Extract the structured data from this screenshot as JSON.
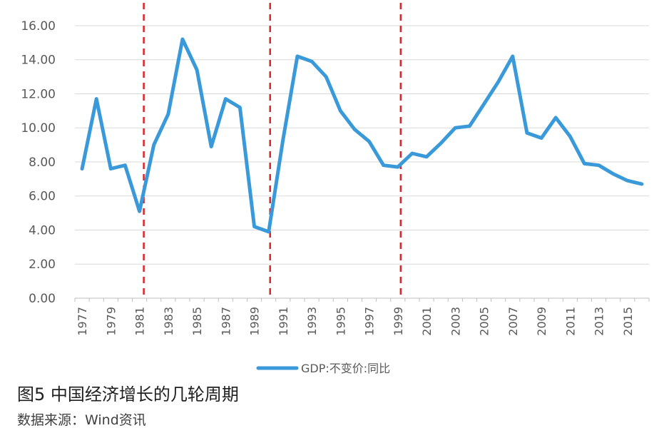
{
  "chart_data": {
    "type": "line",
    "x": [
      "1977",
      "1978",
      "1979",
      "1980",
      "1981",
      "1982",
      "1983",
      "1984",
      "1985",
      "1986",
      "1987",
      "1988",
      "1989",
      "1990",
      "1991",
      "1992",
      "1993",
      "1994",
      "1995",
      "1996",
      "1997",
      "1998",
      "1999",
      "2000",
      "2001",
      "2002",
      "2003",
      "2004",
      "2005",
      "2006",
      "2007",
      "2008",
      "2009",
      "2010",
      "2011",
      "2012",
      "2013",
      "2014",
      "2015",
      "2016"
    ],
    "x_tick_labels": [
      "1977",
      "1979",
      "1981",
      "1983",
      "1985",
      "1987",
      "1989",
      "1991",
      "1993",
      "1995",
      "1997",
      "1999",
      "2001",
      "2003",
      "2005",
      "2007",
      "2009",
      "2011",
      "2013",
      "2015"
    ],
    "series": [
      {
        "name": "GDP:不变价:同比",
        "color": "#3a9ad9",
        "values": [
          7.6,
          11.7,
          7.6,
          7.8,
          5.1,
          9.0,
          10.8,
          15.2,
          13.4,
          8.9,
          11.7,
          11.2,
          4.2,
          3.9,
          9.3,
          14.2,
          13.9,
          13.0,
          11.0,
          9.9,
          9.2,
          7.8,
          7.7,
          8.5,
          8.3,
          9.1,
          10.0,
          10.1,
          11.4,
          12.7,
          14.2,
          9.7,
          9.4,
          10.6,
          9.5,
          7.9,
          7.8,
          7.3,
          6.9,
          6.7
        ]
      }
    ],
    "y_tick_labels": [
      "0.00",
      "2.00",
      "4.00",
      "6.00",
      "8.00",
      "10.00",
      "12.00",
      "14.00",
      "16.00"
    ],
    "ylim": [
      0,
      16.5
    ],
    "grid": true,
    "legend_position": "bottom",
    "cycle_markers": {
      "color": "#d9262b",
      "positions_x": [
        1981.3,
        1990.1,
        1999.2
      ]
    },
    "title": "",
    "xlabel": "",
    "ylabel": ""
  },
  "caption": {
    "title": "图5 中国经济增长的几轮周期",
    "source": "数据来源：Wind资讯"
  }
}
